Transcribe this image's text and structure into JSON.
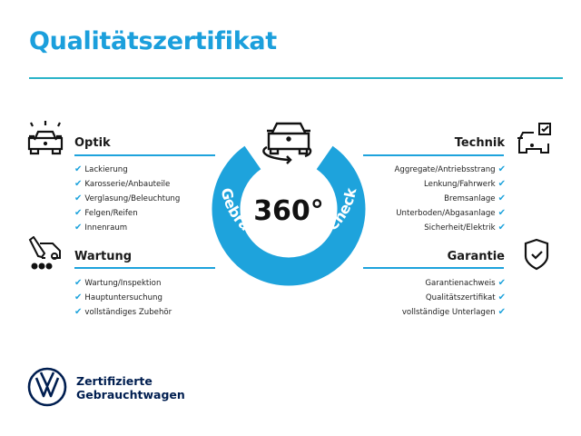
{
  "title": "Qualitätszertifikat",
  "colors": {
    "accent": "#1ea3dc",
    "title": "#1b9fdc",
    "brand": "#001e50"
  },
  "badge": {
    "value": "360°",
    "caption": "Gebrauchtwagen-Check",
    "icon": "car-rotate-icon"
  },
  "sections": {
    "optik": {
      "title": "Optik",
      "icon": "car-lights-icon",
      "items": [
        "Lackierung",
        "Karosserie/Anbauteile",
        "Verglasung/Beleuchtung",
        "Felgen/Reifen",
        "Innenraum"
      ]
    },
    "wartung": {
      "title": "Wartung",
      "icon": "service-truck-icon",
      "items": [
        "Wartung/Inspektion",
        "Hauptuntersuchung",
        "vollständiges Zubehör"
      ]
    },
    "technik": {
      "title": "Technik",
      "icon": "car-checkbox-icon",
      "items": [
        "Aggregate/Antriebsstrang",
        "Lenkung/Fahrwerk",
        "Bremsanlage",
        "Unterboden/Abgasanlage",
        "Sicherheit/Elektrik"
      ]
    },
    "garantie": {
      "title": "Garantie",
      "icon": "shield-check-icon",
      "items": [
        "Garantienachweis",
        "Qualitätszertifikat",
        "vollständige Unterlagen"
      ]
    }
  },
  "check_mark": "✔",
  "brand": {
    "line1": "Zertifizierte",
    "line2": "Gebrauchtwagen"
  }
}
